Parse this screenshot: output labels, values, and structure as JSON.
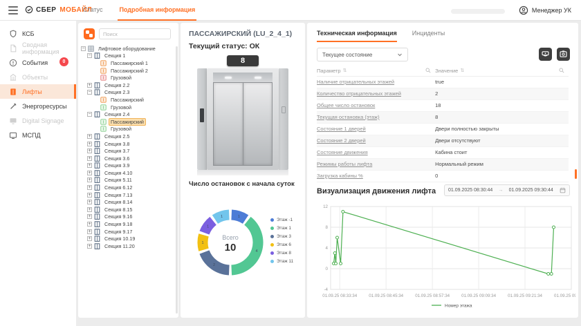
{
  "header": {
    "logo": {
      "primary": "СБЕР",
      "secondary": "МОБАЙЛ",
      "icon": "sber-logo-icon"
    },
    "tabs": [
      {
        "label": "Статус",
        "active": false
      },
      {
        "label": "Подробная информация",
        "active": true
      }
    ],
    "user_label": "Менеджер УК",
    "user_icon": "user-avatar-icon",
    "menu_icon": "hamburger-icon"
  },
  "sidebar": {
    "items": [
      {
        "label": "КСБ",
        "icon": "shield-icon",
        "state": "normal"
      },
      {
        "label": "Сводная информация",
        "icon": "document-icon",
        "state": "disabled"
      },
      {
        "label": "События",
        "icon": "alert-circle-icon",
        "state": "normal",
        "badge": "0"
      },
      {
        "label": "Объекты",
        "icon": "building-icon",
        "state": "disabled"
      },
      {
        "label": "Лифты",
        "icon": "elevator-icon",
        "state": "active"
      },
      {
        "label": "Энергоресурсы",
        "icon": "tools-icon",
        "state": "normal"
      },
      {
        "label": "Digital Signage",
        "icon": "display-icon",
        "state": "disabled"
      },
      {
        "label": "МСПД",
        "icon": "monitor-icon",
        "state": "normal"
      }
    ]
  },
  "tree_panel": {
    "app_icon": "app-grid-icon",
    "search_placeholder": "Поиск",
    "nodes": [
      {
        "level": 0,
        "label": "Лифтовое оборудование",
        "expander": "minus",
        "icon": "grid"
      },
      {
        "level": 1,
        "label": "Секция 1",
        "expander": "minus",
        "icon": "section"
      },
      {
        "level": 2,
        "label": "Пассажирский 1",
        "icon": "lift-orange"
      },
      {
        "level": 2,
        "label": "Пассажирский 2",
        "icon": "lift-orange"
      },
      {
        "level": 2,
        "label": "Грузовой",
        "icon": "lift-red"
      },
      {
        "level": 1,
        "label": "Секция 2.2",
        "expander": "plus",
        "icon": "section"
      },
      {
        "level": 1,
        "label": "Секция 2.3",
        "expander": "minus",
        "icon": "section"
      },
      {
        "level": 2,
        "label": "Пассажирский",
        "icon": "lift-orange"
      },
      {
        "level": 2,
        "label": "Грузовой",
        "icon": "lift-green"
      },
      {
        "level": 1,
        "label": "Секция 2.4",
        "expander": "minus",
        "icon": "section"
      },
      {
        "level": 2,
        "label": "Пассажирский",
        "icon": "lift-green",
        "selected": true
      },
      {
        "level": 2,
        "label": "Грузовой",
        "icon": "lift-green"
      },
      {
        "level": 1,
        "label": "Секция 2.5",
        "expander": "plus",
        "icon": "section"
      },
      {
        "level": 1,
        "label": "Секция 3.8",
        "expander": "plus",
        "icon": "section"
      },
      {
        "level": 1,
        "label": "Секция 3.7",
        "expander": "plus",
        "icon": "section"
      },
      {
        "level": 1,
        "label": "Секция 3.6",
        "expander": "plus",
        "icon": "section"
      },
      {
        "level": 1,
        "label": "Секция 3.9",
        "expander": "plus",
        "icon": "section"
      },
      {
        "level": 1,
        "label": "Секция 4.10",
        "expander": "plus",
        "icon": "section"
      },
      {
        "level": 1,
        "label": "Секция 5.11",
        "expander": "plus",
        "icon": "section"
      },
      {
        "level": 1,
        "label": "Секция 6.12",
        "expander": "plus",
        "icon": "section"
      },
      {
        "level": 1,
        "label": "Секция 7.13",
        "expander": "plus",
        "icon": "section"
      },
      {
        "level": 1,
        "label": "Секция 8.14",
        "expander": "plus",
        "icon": "section"
      },
      {
        "level": 1,
        "label": "Секция 8.15",
        "expander": "plus",
        "icon": "section"
      },
      {
        "level": 1,
        "label": "Секция 9.16",
        "expander": "plus",
        "icon": "section"
      },
      {
        "level": 1,
        "label": "Секция 9.18",
        "expander": "plus",
        "icon": "section"
      },
      {
        "level": 1,
        "label": "Секция 9.17",
        "expander": "plus",
        "icon": "section"
      },
      {
        "level": 1,
        "label": "Секция 10.19",
        "expander": "plus",
        "icon": "section"
      },
      {
        "level": 1,
        "label": "Секция 11.20",
        "expander": "plus",
        "icon": "section"
      }
    ]
  },
  "detail_panel": {
    "title": "ПАССАЖИРСКИЙ (LU_2_4_1)",
    "status_label": "Текущий статус: ОК",
    "floor_indicator": "8",
    "stops_title": "Число остановок с начала суток"
  },
  "info_panel": {
    "tabs": [
      {
        "label": "Техническая информация",
        "active": true
      },
      {
        "label": "Инциденты",
        "active": false
      }
    ],
    "state_select_value": "Текущее состояние",
    "buttons": [
      {
        "icon": "cctv-camera-icon"
      },
      {
        "icon": "snapshot-camera-icon"
      }
    ],
    "table": {
      "columns": [
        "Параметр",
        "Значение"
      ],
      "rows": [
        [
          "Наличие отрицательных этажей",
          "true"
        ],
        [
          "Количество отрицательных этажей",
          "2"
        ],
        [
          "Общее число остановок",
          "18"
        ],
        [
          "Текущая остановка (этаж)",
          "8"
        ],
        [
          "Состояние 1 дверей",
          "Двери полностью закрыты"
        ],
        [
          "Состояние 2 дверей",
          "Двери отсутствуют"
        ],
        [
          "Состояние движения",
          "Кабина стоит"
        ],
        [
          "Режимы работы лифта",
          "Нормальный режим"
        ],
        [
          "Загрузка кабины %",
          "0"
        ]
      ]
    },
    "movement": {
      "title": "Визуализация движения лифта",
      "date_from": "01.09.2025 08:30:44",
      "date_to": "01.09.2025 09:30:44",
      "calendar_icon": "calendar-icon"
    }
  },
  "chart_data": [
    {
      "type": "pie",
      "title": "Число остановок с начала суток",
      "center_label": "Всего",
      "total": 10,
      "legend_position": "right",
      "segments": [
        {
          "label": "Этаж -1",
          "value": 1,
          "color": "#4d7cd6"
        },
        {
          "label": "Этаж 1",
          "value": 4,
          "color": "#52c793"
        },
        {
          "label": "Этаж 3",
          "value": 2,
          "color": "#5a7299"
        },
        {
          "label": "Этаж 6",
          "value": 1,
          "color": "#f2c012"
        },
        {
          "label": "Этаж 8",
          "value": 1,
          "color": "#7b5fe0"
        },
        {
          "label": "Этаж 11",
          "value": 1,
          "color": "#72c5ec"
        }
      ]
    },
    {
      "type": "line",
      "title": "Визуализация движения лифта",
      "ylabel": "",
      "xlabel": "",
      "y_domain": [
        -4,
        12
      ],
      "y_ticks": [
        -4,
        0,
        4,
        8,
        12
      ],
      "x_domain": [
        1.2,
        63.57
      ],
      "x_ticks": [
        {
          "pos": 3.57,
          "label": "01.09.25 08:33:34"
        },
        {
          "pos": 15.57,
          "label": "01.09.25 08:45:34"
        },
        {
          "pos": 27.57,
          "label": "01.09.25 08:57:34"
        },
        {
          "pos": 39.57,
          "label": "01.09.25 09:09:34"
        },
        {
          "pos": 51.57,
          "label": "01.09.25 09:21:34"
        },
        {
          "pos": 63.57,
          "label": "01.09.25 09:33:34"
        }
      ],
      "grid": true,
      "legend": "Номер этажа",
      "series": [
        {
          "name": "Номер этажа",
          "color": "#4caf50",
          "points": [
            [
              2.0,
              1
            ],
            [
              2.3,
              3
            ],
            [
              2.55,
              1
            ],
            [
              2.9,
              6
            ],
            [
              3.8,
              1
            ],
            [
              4.4,
              11
            ],
            [
              57.6,
              -1
            ],
            [
              58.4,
              -1
            ],
            [
              59.0,
              8
            ]
          ]
        }
      ]
    }
  ]
}
